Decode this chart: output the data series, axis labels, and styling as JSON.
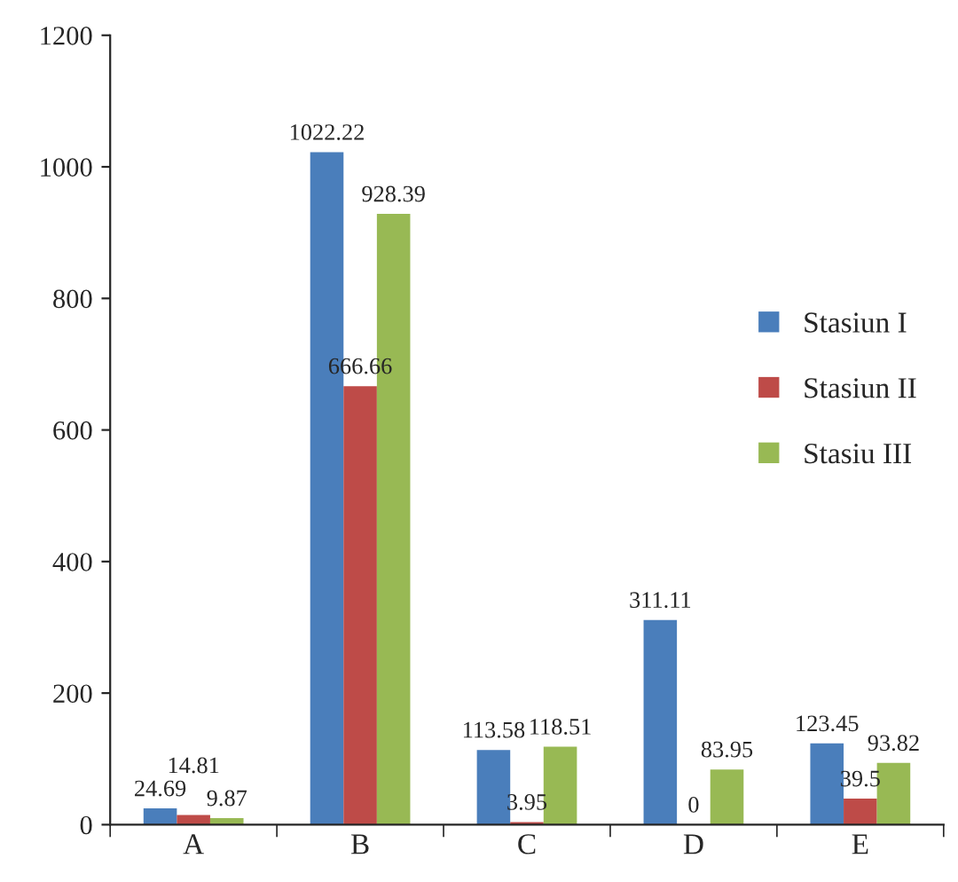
{
  "chart_data": {
    "type": "bar",
    "categories": [
      "A",
      "B",
      "C",
      "D",
      "E"
    ],
    "series": [
      {
        "name": "Stasiun I",
        "color": "#4a7ebb",
        "values": [
          24.69,
          1022.22,
          113.58,
          311.11,
          123.45
        ]
      },
      {
        "name": "Stasiun II",
        "color": "#be4b48",
        "values": [
          14.81,
          666.66,
          3.95,
          0,
          39.5
        ]
      },
      {
        "name": "Stasiu III",
        "color": "#98b954",
        "values": [
          9.87,
          928.39,
          118.51,
          83.95,
          93.82
        ]
      }
    ],
    "ylim": [
      0,
      1200
    ],
    "yticks": [
      0,
      200,
      400,
      600,
      800,
      1000,
      1200
    ],
    "data_labels": true,
    "legend": "right",
    "grid": false
  }
}
